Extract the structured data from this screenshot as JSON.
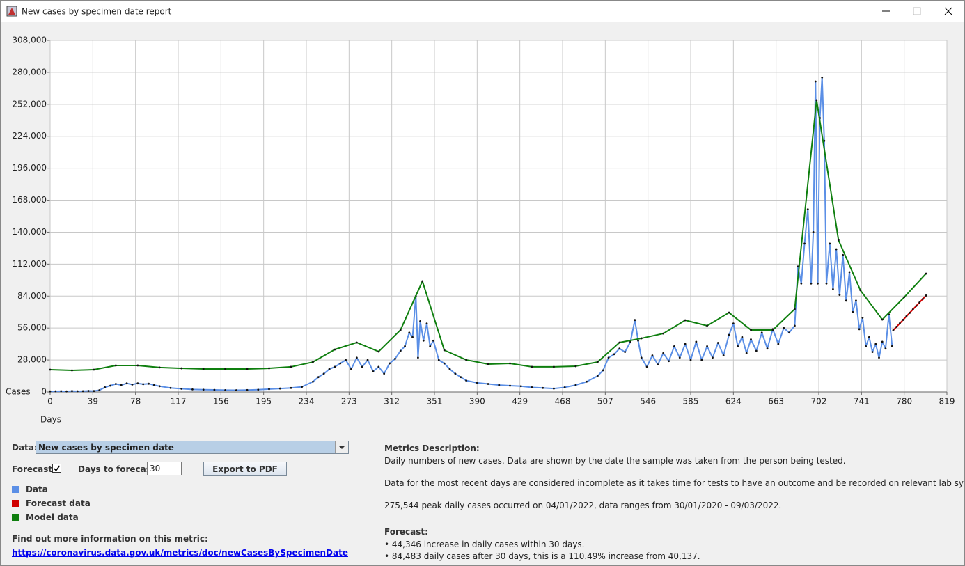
{
  "window": {
    "title": "New cases by specimen date report"
  },
  "chart_data": {
    "type": "line",
    "x_label": "Days",
    "y_label": "Cases",
    "xlim": [
      0,
      819
    ],
    "xticks": [
      0,
      39,
      78,
      117,
      156,
      195,
      234,
      273,
      312,
      351,
      390,
      429,
      468,
      507,
      546,
      585,
      624,
      663,
      702,
      741,
      780,
      819
    ],
    "ylim": [
      0,
      308000
    ],
    "yticks": [
      0,
      {
        "value": 28000,
        "label": "28,000"
      },
      {
        "value": 56000,
        "label": "56,000"
      },
      {
        "value": 84000,
        "label": "84,000"
      },
      {
        "value": 112000,
        "label": "112,000"
      },
      {
        "value": 140000,
        "label": "140,000"
      },
      {
        "value": 168000,
        "label": "168,000"
      },
      {
        "value": 196000,
        "label": "196,000"
      },
      {
        "value": 224000,
        "label": "224,000"
      },
      {
        "value": 252000,
        "label": "252,000"
      },
      {
        "value": 280000,
        "label": "280,000"
      },
      {
        "value": 308000,
        "label": "308,000"
      }
    ],
    "grid": true,
    "series": [
      {
        "name": "Data",
        "color": "#5b8fe6",
        "x": [
          0,
          5,
          10,
          15,
          20,
          25,
          30,
          35,
          40,
          45,
          50,
          55,
          60,
          65,
          70,
          75,
          80,
          85,
          90,
          95,
          100,
          110,
          120,
          130,
          140,
          150,
          160,
          170,
          180,
          190,
          200,
          210,
          220,
          230,
          240,
          245,
          250,
          255,
          260,
          265,
          270,
          275,
          280,
          285,
          290,
          295,
          300,
          305,
          310,
          315,
          320,
          324,
          328,
          331,
          334,
          336,
          338,
          341,
          344,
          347,
          350,
          355,
          360,
          365,
          370,
          375,
          380,
          390,
          400,
          410,
          420,
          430,
          440,
          450,
          460,
          470,
          480,
          490,
          500,
          505,
          510,
          515,
          520,
          525,
          530,
          534,
          537,
          540,
          545,
          550,
          555,
          560,
          565,
          570,
          575,
          580,
          585,
          590,
          595,
          600,
          605,
          610,
          615,
          620,
          624,
          628,
          632,
          636,
          640,
          645,
          650,
          655,
          660,
          665,
          670,
          675,
          680,
          683,
          686,
          689,
          692,
          695,
          697,
          699,
          701,
          703,
          705,
          707,
          709,
          712,
          715,
          718,
          721,
          724,
          727,
          730,
          733,
          736,
          739,
          742,
          745,
          748,
          751,
          754,
          757,
          760,
          763,
          766,
          769
        ],
        "values": [
          500,
          600,
          700,
          500,
          800,
          600,
          700,
          900,
          800,
          1500,
          4000,
          5500,
          7000,
          6000,
          7500,
          6500,
          7500,
          6800,
          7200,
          6000,
          5000,
          3500,
          2800,
          2200,
          2000,
          1800,
          1600,
          1500,
          1700,
          2000,
          2500,
          3000,
          3500,
          4500,
          9000,
          13000,
          16000,
          20000,
          22000,
          25000,
          28000,
          20000,
          30000,
          22000,
          28000,
          18000,
          22000,
          16000,
          25000,
          29000,
          36000,
          40000,
          52000,
          48000,
          84000,
          30000,
          62000,
          45000,
          60000,
          40000,
          45000,
          28000,
          25000,
          20000,
          16000,
          13000,
          10000,
          8000,
          7000,
          6000,
          5500,
          5000,
          4000,
          3500,
          3000,
          4000,
          6000,
          9000,
          14000,
          19000,
          30000,
          33000,
          38000,
          35000,
          44000,
          63000,
          45000,
          30000,
          22000,
          32000,
          24000,
          34000,
          27000,
          40000,
          30000,
          42000,
          28000,
          44000,
          28000,
          40000,
          30000,
          43000,
          32000,
          50000,
          60000,
          40000,
          48000,
          34000,
          46000,
          36000,
          52000,
          38000,
          55000,
          42000,
          56000,
          52000,
          58000,
          110000,
          95000,
          130000,
          160000,
          95000,
          140000,
          272000,
          95000,
          240000,
          275544,
          220000,
          95000,
          130000,
          90000,
          125000,
          85000,
          120000,
          80000,
          105000,
          70000,
          80000,
          55000,
          65000,
          40000,
          48000,
          35000,
          42000,
          30000,
          44000,
          38000,
          68000,
          40137
        ]
      },
      {
        "name": "Forecast data",
        "color": "#d00000",
        "x": [
          770,
          773,
          776,
          779,
          782,
          785,
          788,
          791,
          794,
          797,
          800
        ],
        "values": [
          54000,
          57050,
          60100,
          63150,
          66200,
          69250,
          72300,
          75350,
          78400,
          81450,
          84500
        ]
      },
      {
        "name": "Model data",
        "color": "#0f7f0f",
        "x": [
          0,
          20,
          40,
          60,
          80,
          100,
          120,
          140,
          160,
          180,
          200,
          220,
          240,
          260,
          280,
          300,
          320,
          340,
          360,
          380,
          400,
          420,
          440,
          460,
          480,
          500,
          520,
          540,
          560,
          580,
          600,
          620,
          640,
          660,
          680,
          700,
          720,
          740,
          760,
          780,
          800
        ],
        "values": [
          19500,
          18900,
          19500,
          23200,
          23200,
          21400,
          20700,
          20100,
          20100,
          20100,
          20700,
          22000,
          26200,
          37200,
          43300,
          35400,
          54300,
          97000,
          36600,
          28100,
          24400,
          25000,
          22000,
          22000,
          22600,
          26200,
          43300,
          47000,
          51200,
          62800,
          58000,
          69500,
          54300,
          54300,
          72600,
          255600,
          133000,
          89100,
          63400,
          83000,
          103700
        ]
      }
    ]
  },
  "controls": {
    "data_label": "Data:",
    "data_selected": "New cases by specimen date",
    "forecast_label": "Forecast:",
    "forecast_checked": true,
    "days_label": "Days to forecast:",
    "days_value": 30,
    "export_button": "Export to PDF"
  },
  "info": {
    "heading": "Find out more information on this metric:",
    "link": "https://coronavirus.data.gov.uk/metrics/doc/newCasesBySpecimenDate"
  },
  "description": {
    "heading": "Metrics Description:",
    "paragraphs": [
      "Daily numbers of new cases. Data are shown by the date the sample was taken from the person being tested.",
      "Data for the most recent days are considered incomplete as it takes time for tests to have an outcome and be recorded on relevant lab systems.",
      "275,544 peak daily cases occurred on 04/01/2022, data ranges from 30/01/2020 - 09/03/2022."
    ],
    "forecast_heading": "Forecast:",
    "forecast_lines": [
      "• 44,346 increase in daily cases within 30 days.",
      "• 84,483 daily cases after 30 days, this is a 110.49% increase from 40,137."
    ]
  }
}
